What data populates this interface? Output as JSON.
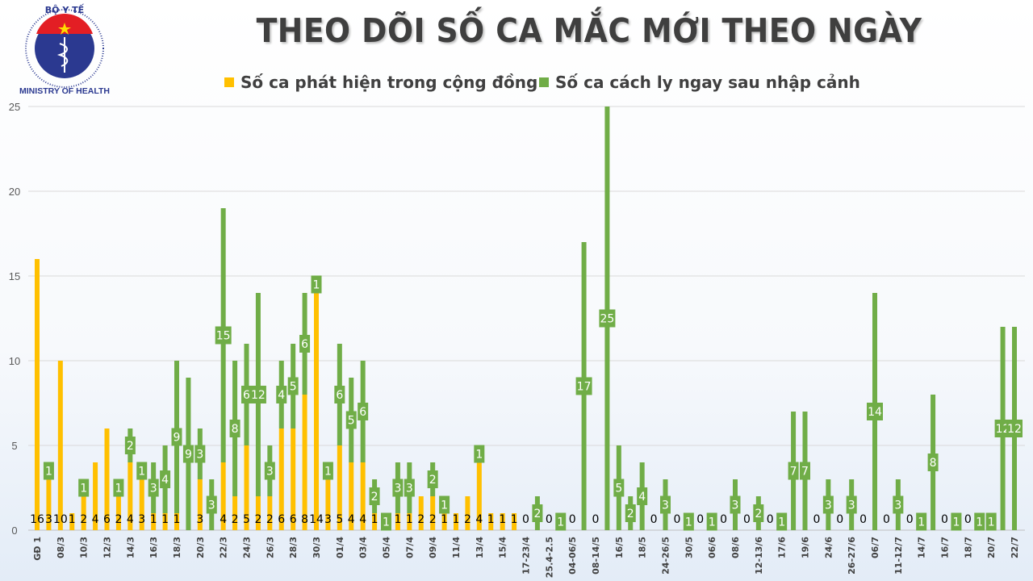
{
  "logo": {
    "text_top": "BỘ Y TẾ",
    "text_bottom": "MINISTRY OF HEALTH"
  },
  "colors": {
    "community": "#FFC000",
    "quarantine": "#70AD47",
    "title": "#3f3f3f"
  },
  "chart_data": {
    "type": "bar",
    "stacked": true,
    "title": "THEO DÕI SỐ CA MẮC MỚI THEO NGÀY",
    "xlabel": "",
    "ylabel": "",
    "ylim": [
      0,
      25
    ],
    "yticks": [
      0,
      5,
      10,
      15,
      20,
      25
    ],
    "grid": true,
    "legend": "top",
    "x_tick_labels": [
      "GĐ 1",
      "08/3",
      "10/3",
      "12/3",
      "14/3",
      "16/3",
      "18/3",
      "20/3",
      "22/3",
      "24/3",
      "26/3",
      "28/3",
      "30/3",
      "01/4",
      "03/4",
      "05/4",
      "07/4",
      "09/4",
      "11/4",
      "13/4",
      "15/4",
      "17-23/4",
      "25.4-2.5",
      "04-06/5",
      "08-14/5",
      "16/5",
      "18/5",
      "24-26/5",
      "30/5",
      "06/6",
      "08/6",
      "12-13/6",
      "17/6",
      "19/6",
      "24/6",
      "26-27/6",
      "06/7",
      "11-12/7",
      "14/7",
      "16/7",
      "18/7",
      "20/7",
      "22/7"
    ],
    "series": [
      {
        "name": "Số ca phát hiện trong cộng đồng",
        "color": "#FFC000",
        "values": [
          16,
          3,
          10,
          1,
          2,
          4,
          6,
          2,
          4,
          3,
          1,
          1,
          1,
          0,
          3,
          0,
          4,
          2,
          5,
          2,
          2,
          6,
          6,
          8,
          14,
          3,
          5,
          4,
          4,
          1,
          0,
          1,
          1,
          2,
          2,
          1,
          1,
          2,
          4,
          1,
          1,
          1,
          0,
          0,
          0,
          0,
          0,
          0,
          0,
          0,
          0,
          0,
          0,
          0,
          0,
          0,
          0,
          0,
          0,
          0,
          0,
          0,
          0,
          0,
          0,
          0,
          0,
          0,
          0,
          0,
          0,
          0,
          0,
          0,
          0,
          0,
          0,
          0,
          0,
          0,
          0,
          0,
          0,
          0,
          0
        ]
      },
      {
        "name": "Số ca cách ly ngay sau nhập cảnh",
        "color": "#70AD47",
        "values": [
          0,
          1,
          0,
          0,
          1,
          0,
          0,
          1,
          2,
          1,
          3,
          4,
          9,
          9,
          3,
          3,
          15,
          8,
          6,
          12,
          3,
          4,
          5,
          6,
          1,
          1,
          6,
          5,
          6,
          2,
          1,
          3,
          3,
          0,
          2,
          1,
          0,
          0,
          1,
          0,
          0,
          0,
          0,
          2,
          0,
          1,
          0,
          17,
          0,
          25,
          5,
          2,
          4,
          0,
          3,
          0,
          1,
          0,
          1,
          0,
          3,
          0,
          2,
          0,
          1,
          7,
          7,
          0,
          3,
          0,
          3,
          0,
          14,
          0,
          3,
          0,
          1,
          8,
          0,
          1,
          0,
          1,
          1,
          12,
          12
        ]
      }
    ]
  }
}
